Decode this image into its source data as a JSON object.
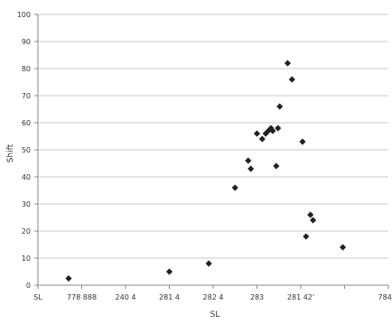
{
  "chart_data": {
    "type": "scatter",
    "title": "",
    "xlabel": "SL",
    "ylabel": "Shift",
    "ylim": [
      0,
      100
    ],
    "yticks": [
      0,
      10,
      20,
      30,
      40,
      50,
      60,
      70,
      80,
      90,
      100
    ],
    "xlim": [
      0,
      400
    ],
    "x_tick_values": [
      0,
      50,
      100,
      150,
      200,
      250,
      300,
      350,
      400
    ],
    "x_tick_labels": [
      "SL",
      "778 888",
      "240 4",
      "281 4",
      "282 4",
      "283",
      "281 42'",
      "",
      "784 4"
    ],
    "grid": true,
    "legend": "none",
    "marker_color": "#222222",
    "points": [
      {
        "x": 35,
        "y": 2.5
      },
      {
        "x": 150,
        "y": 5
      },
      {
        "x": 195,
        "y": 8
      },
      {
        "x": 225,
        "y": 36
      },
      {
        "x": 240,
        "y": 46
      },
      {
        "x": 243,
        "y": 43
      },
      {
        "x": 250,
        "y": 56
      },
      {
        "x": 256,
        "y": 54
      },
      {
        "x": 260,
        "y": 56
      },
      {
        "x": 263,
        "y": 57
      },
      {
        "x": 266,
        "y": 58
      },
      {
        "x": 268,
        "y": 57
      },
      {
        "x": 272,
        "y": 44
      },
      {
        "x": 274,
        "y": 58
      },
      {
        "x": 276,
        "y": 66
      },
      {
        "x": 285,
        "y": 82
      },
      {
        "x": 290,
        "y": 76
      },
      {
        "x": 302,
        "y": 53
      },
      {
        "x": 306,
        "y": 18
      },
      {
        "x": 311,
        "y": 26
      },
      {
        "x": 314,
        "y": 24
      },
      {
        "x": 348,
        "y": 14
      }
    ]
  }
}
